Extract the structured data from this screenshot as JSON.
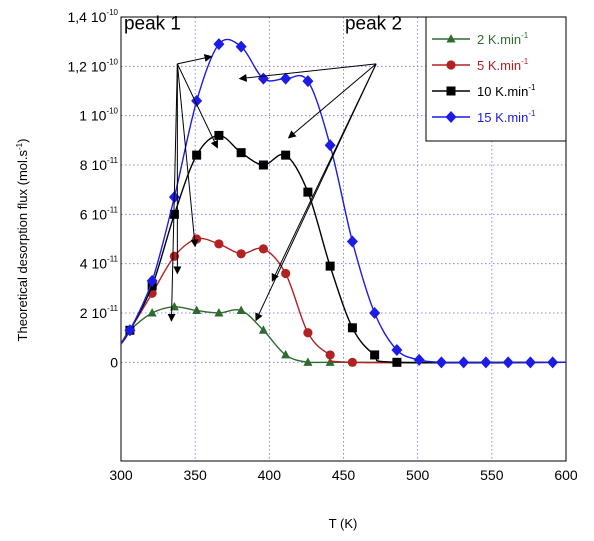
{
  "chart_data": {
    "type": "line",
    "xlabel": "T (K)",
    "ylabel": "Theoretical desorption flux (mol.s",
    "ylabel_sup": "-1",
    "ylabel_close": ")",
    "xlim": [
      300,
      600
    ],
    "ylim": [
      -4e-11,
      1.4e-10
    ],
    "grid": true,
    "legend_position": "top-right",
    "x_ticks": [
      "300",
      "350",
      "400",
      "450",
      "500",
      "550",
      "600"
    ],
    "y_ticks": [
      {
        "value": 0,
        "mantissa": "0",
        "exp": ""
      },
      {
        "value": 2e-11,
        "mantissa": "2 10",
        "exp": "-11"
      },
      {
        "value": 4e-11,
        "mantissa": "4 10",
        "exp": "-11"
      },
      {
        "value": 6e-11,
        "mantissa": "6 10",
        "exp": "-11"
      },
      {
        "value": 8e-11,
        "mantissa": "8 10",
        "exp": "-11"
      },
      {
        "value": 1e-10,
        "mantissa": "1 10",
        "exp": "-10"
      },
      {
        "value": 1.2e-10,
        "mantissa": "1,2 10",
        "exp": "-10"
      },
      {
        "value": 1.4e-10,
        "mantissa": "1,4 10",
        "exp": "-10"
      }
    ],
    "series": [
      {
        "name": "2 K.min",
        "name_sup": "-1",
        "color": "#2e6b2e",
        "marker": "triangle",
        "x": [
          306,
          321,
          336,
          351,
          366,
          381,
          396,
          411,
          426,
          441
        ],
        "y": [
          1.3e-11,
          2e-11,
          2.25e-11,
          2.1e-11,
          2e-11,
          2.1e-11,
          1.3e-11,
          3e-12,
          0,
          0
        ]
      },
      {
        "name": "5 K.min",
        "name_sup": "-1",
        "color": "#b22222",
        "marker": "circle",
        "x": [
          306,
          321,
          336,
          351,
          366,
          381,
          396,
          411,
          426,
          441,
          456
        ],
        "y": [
          1.3e-11,
          2.8e-11,
          4.3e-11,
          5e-11,
          4.8e-11,
          4.4e-11,
          4.6e-11,
          3.6e-11,
          1.2e-11,
          3e-12,
          0
        ]
      },
      {
        "name": "10 K.min",
        "name_sup": "-1",
        "color": "#000000",
        "marker": "square",
        "x": [
          306,
          321,
          336,
          351,
          366,
          381,
          396,
          411,
          426,
          441,
          456,
          471,
          486
        ],
        "y": [
          1.3e-11,
          3.1e-11,
          6e-11,
          8.4e-11,
          9.2e-11,
          8.5e-11,
          8e-11,
          8.4e-11,
          6.9e-11,
          3.9e-11,
          1.4e-11,
          3e-12,
          0
        ]
      },
      {
        "name": "15 K.min",
        "name_sup": "-1",
        "color": "#1c1ce6",
        "marker": "diamond",
        "x": [
          306,
          321,
          336,
          351,
          366,
          381,
          396,
          411,
          426,
          441,
          456,
          471,
          486,
          501,
          516,
          531,
          546,
          561,
          576,
          591
        ],
        "y": [
          1.3e-11,
          3.3e-11,
          6.7e-11,
          1.06e-10,
          1.29e-10,
          1.28e-10,
          1.15e-10,
          1.15e-10,
          1.14e-10,
          8.8e-11,
          4.9e-11,
          2e-11,
          5e-12,
          1e-12,
          0,
          0,
          0,
          0,
          0,
          0
        ]
      }
    ],
    "annotations": [
      {
        "text": "peak 1",
        "origin": [
          338,
          1.21e-10
        ],
        "targets": [
          [
            334,
            1.68e-11
          ],
          [
            338,
            3.6e-11
          ],
          [
            350,
            4.7e-11
          ],
          [
            365,
            8.7e-11
          ],
          [
            361,
            1.24e-10
          ]
        ]
      },
      {
        "text": "peak 2",
        "origin": [
          472,
          1.21e-10
        ],
        "targets": [
          [
            380,
            1.15e-10
          ],
          [
            413,
            9.1e-11
          ],
          [
            402,
            3.3e-11
          ],
          [
            391,
            1.7e-11
          ]
        ]
      }
    ]
  }
}
